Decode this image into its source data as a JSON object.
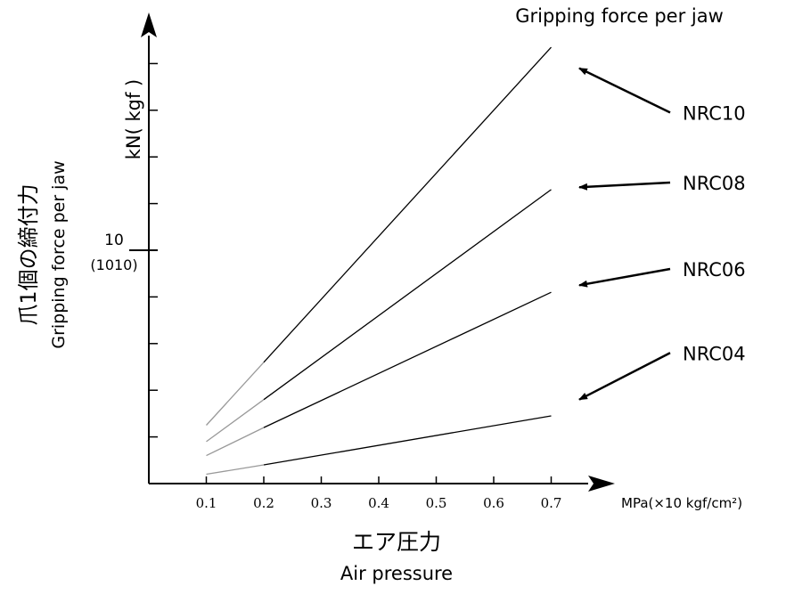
{
  "chart_data": {
    "type": "line",
    "title": "Gripping force per jaw",
    "xlabel_jp": "エア圧力",
    "xlabel_en": "Air pressure",
    "x_unit": "MPa(×10 kgf/cm²)",
    "ylabel_jp": "爪1個の締付力",
    "ylabel_en": "Gripping force per jaw",
    "y_unit": "kN( kgf )",
    "x": [
      0.1,
      0.2,
      0.7
    ],
    "x_ticks": [
      "0.1",
      "0.2",
      "0.3",
      "0.4",
      "0.5",
      "0.6",
      "0.7"
    ],
    "x_tick_values": [
      0.1,
      0.2,
      0.3,
      0.4,
      0.5,
      0.6,
      0.7
    ],
    "xlim": [
      0.0,
      0.8
    ],
    "y_minor_ticks": [
      2,
      4,
      6,
      8,
      10,
      12,
      14,
      16,
      18
    ],
    "y_major_tick": {
      "value": 10,
      "label": "10",
      "sublabel": "(1010)"
    },
    "ylim": [
      0,
      19.5
    ],
    "series": [
      {
        "name": "NRC10",
        "values": [
          2.5,
          5.2,
          18.7
        ],
        "label_y": 15.9,
        "arrow_y": 17.8
      },
      {
        "name": "NRC08",
        "values": [
          1.8,
          3.6,
          12.6
        ],
        "label_y": 12.9,
        "arrow_y": 12.7
      },
      {
        "name": "NRC06",
        "values": [
          1.2,
          2.4,
          8.2
        ],
        "label_y": 9.2,
        "arrow_y": 8.5
      },
      {
        "name": "NRC04",
        "values": [
          0.4,
          0.8,
          2.9
        ],
        "label_y": 5.6,
        "arrow_y": 3.6
      }
    ],
    "grid": false,
    "line_color": "#000000",
    "extrapolated_segment_color": "#999999"
  }
}
